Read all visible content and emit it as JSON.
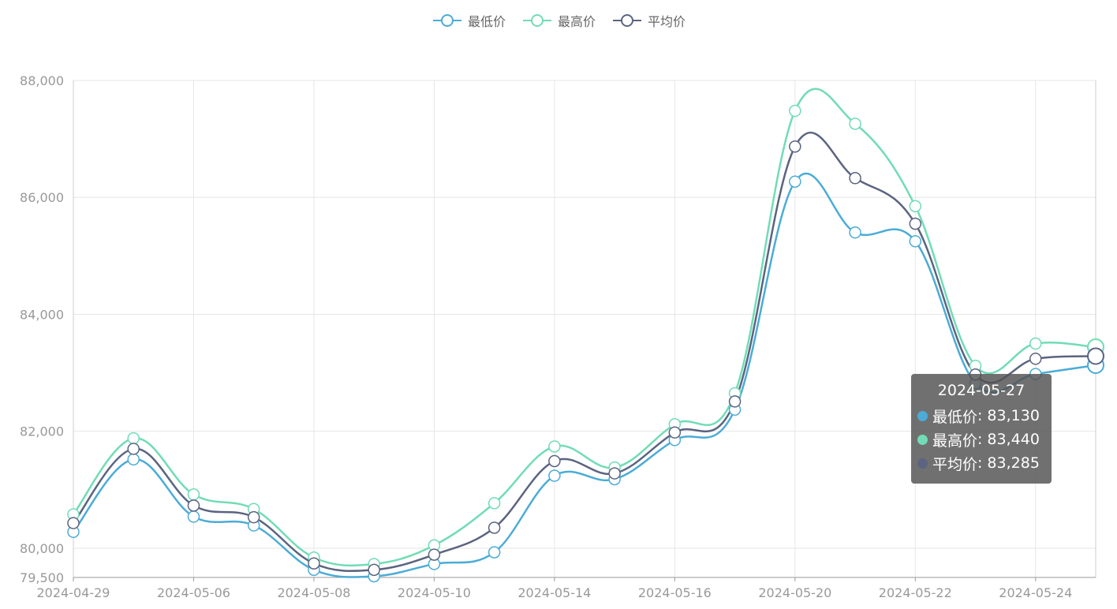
{
  "chart_data": {
    "type": "line",
    "title": "",
    "xlabel": "",
    "ylabel": "",
    "x": [
      "2024-04-29",
      "2024-04-30",
      "2024-05-06",
      "2024-05-07",
      "2024-05-08",
      "2024-05-09",
      "2024-05-10",
      "2024-05-13",
      "2024-05-14",
      "2024-05-15",
      "2024-05-16",
      "2024-05-17",
      "2024-05-20",
      "2024-05-21",
      "2024-05-22",
      "2024-05-23",
      "2024-05-24",
      "2024-05-27"
    ],
    "x_tick_labels": [
      "2024-04-29",
      "2024-05-06",
      "2024-05-08",
      "2024-05-10",
      "2024-05-14",
      "2024-05-16",
      "2024-05-20",
      "2024-05-22",
      "2024-05-24"
    ],
    "ylim": [
      79500,
      88000
    ],
    "y_ticks": [
      79500,
      80000,
      82000,
      84000,
      86000,
      88000
    ],
    "y_tick_labels": [
      "79,500",
      "80,000",
      "82,000",
      "84,000",
      "86,000",
      "88,000"
    ],
    "grid": true,
    "legend_position": "top-center",
    "series": [
      {
        "name": "最低价",
        "color": "#4bacd6",
        "values": [
          80280,
          81520,
          80540,
          80390,
          79630,
          79520,
          79730,
          79930,
          81240,
          81180,
          81850,
          82370,
          86270,
          85400,
          85250,
          82820,
          82980,
          83130
        ]
      },
      {
        "name": "最高价",
        "color": "#71dcb5",
        "values": [
          80580,
          81880,
          80920,
          80670,
          79840,
          79730,
          80050,
          80770,
          81740,
          81380,
          82120,
          82650,
          87480,
          87260,
          85850,
          83120,
          83500,
          83440
        ]
      },
      {
        "name": "平均价",
        "color": "#5b6480",
        "values": [
          80430,
          81700,
          80730,
          80530,
          79740,
          79630,
          79890,
          80350,
          81490,
          81280,
          81980,
          82510,
          86870,
          86330,
          85550,
          82970,
          83240,
          83285
        ]
      }
    ]
  },
  "tooltip": {
    "date": "2024-05-27",
    "rows": [
      {
        "label": "最低价",
        "value": "83,130",
        "color": "#4bacd6"
      },
      {
        "label": "最高价",
        "value": "83,440",
        "color": "#71dcb5"
      },
      {
        "label": "平均价",
        "value": "83,285",
        "color": "#5b6480"
      }
    ]
  }
}
